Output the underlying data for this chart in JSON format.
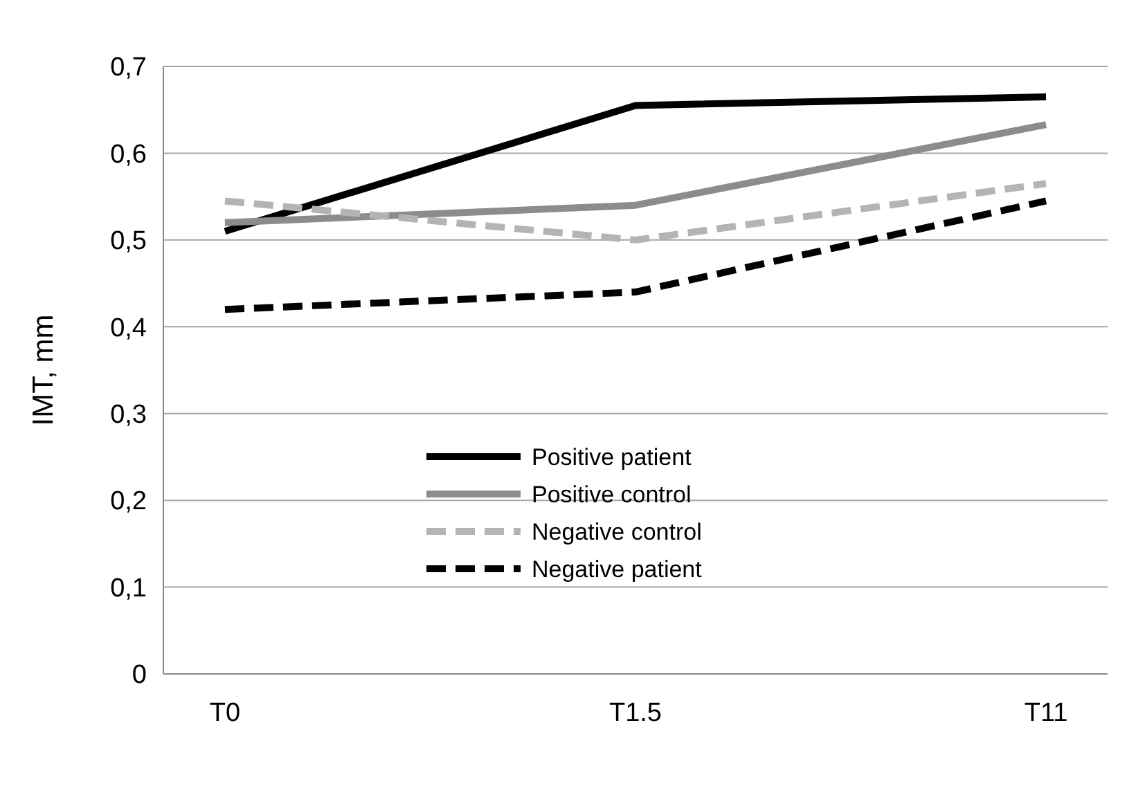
{
  "chart_data": {
    "type": "line",
    "ylabel": "IMT, mm",
    "categories": [
      "T0",
      "T1.5",
      "T11"
    ],
    "ylim": [
      0,
      0.7
    ],
    "yticks": [
      0,
      {
        "value": 0.1,
        "label": "0,1"
      },
      {
        "value": 0.2,
        "label": "0,2"
      },
      {
        "value": 0.3,
        "label": "0,3"
      },
      {
        "value": 0.4,
        "label": "0,4"
      },
      {
        "value": 0.5,
        "label": "0,5"
      },
      {
        "value": 0.6,
        "label": "0,6"
      },
      {
        "value": 0.7,
        "label": "0,7"
      }
    ],
    "grid": "y",
    "legend": "bottom",
    "marker": "none",
    "series": [
      {
        "name": "Positive patient",
        "color": "#000000",
        "line_style": "solid",
        "values": [
          0.51,
          0.655,
          0.665
        ]
      },
      {
        "name": "Positive control",
        "color": "#8c8c8c",
        "line_style": "solid",
        "values": [
          0.52,
          0.54,
          0.633
        ]
      },
      {
        "name": "Negative control",
        "color": "#b4b4b4",
        "line_style": "dashed",
        "values": [
          0.545,
          0.5,
          0.565
        ]
      },
      {
        "name": "Negative patient",
        "color": "#000000",
        "line_style": "dashed",
        "values": [
          0.42,
          0.44,
          0.545
        ]
      }
    ]
  }
}
